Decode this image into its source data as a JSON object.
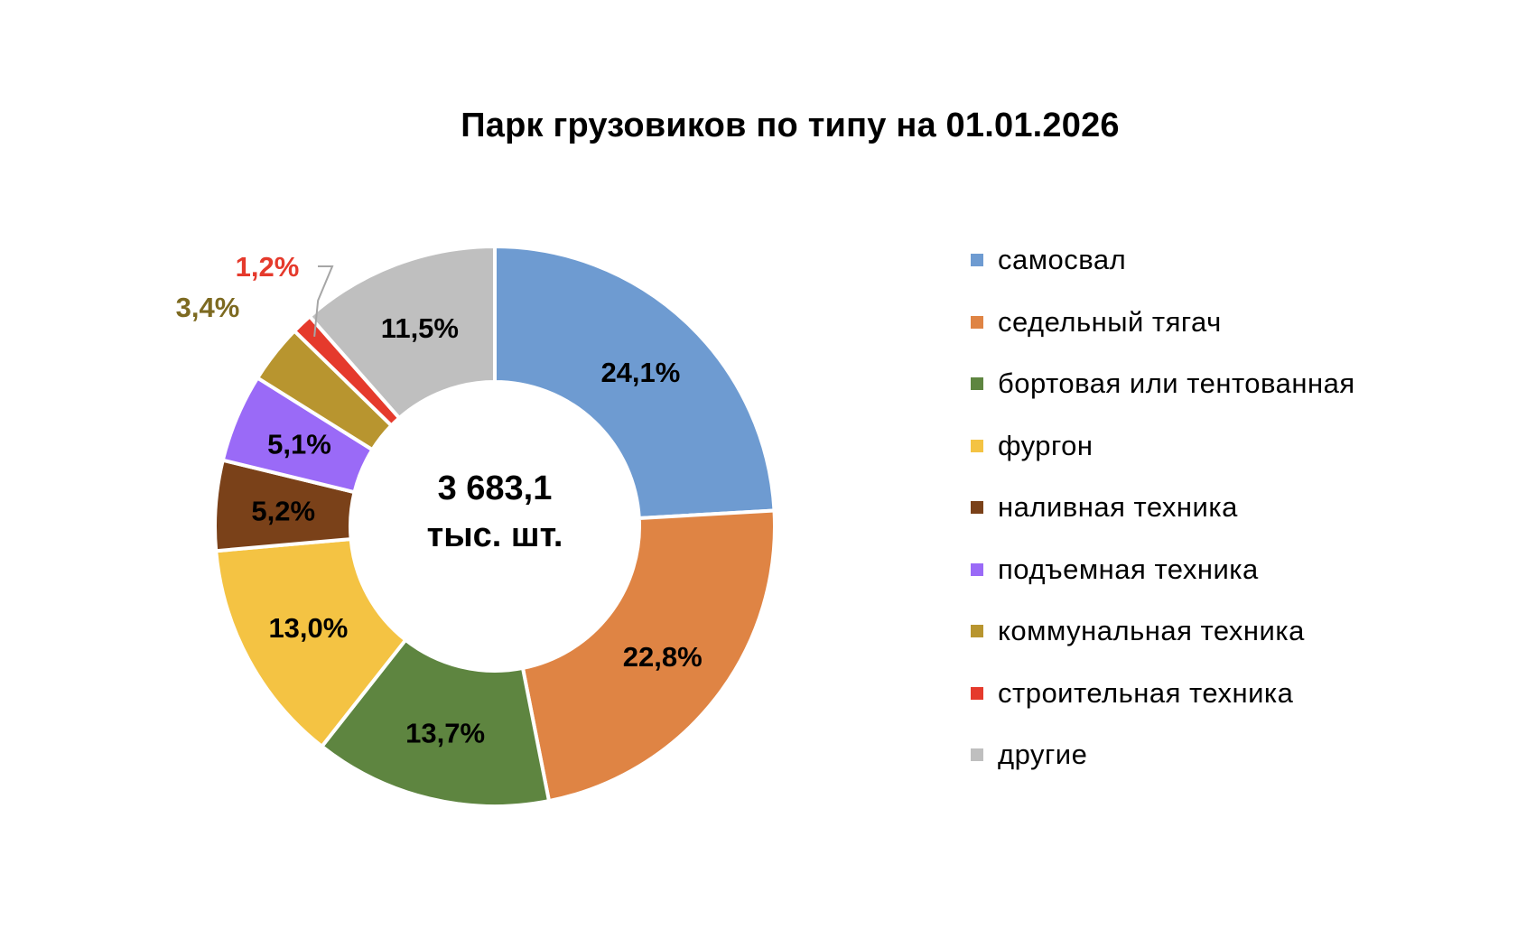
{
  "chart_data": {
    "type": "pie",
    "variant": "donut",
    "title": "Парк грузовиков по типу  на 01.01.2026",
    "center_label": {
      "line1": "3 683,1",
      "line2": "тыс. шт."
    },
    "categories": [
      "самосвал",
      "седельный  тягач",
      "бортовая или тентованная",
      "фургон",
      "наливная техника",
      "подъемная техника",
      "коммунальная техника",
      "строительная техника",
      "другие"
    ],
    "values": [
      24.1,
      22.8,
      13.7,
      13.0,
      5.2,
      5.1,
      3.4,
      1.2,
      11.5
    ],
    "data_labels": [
      "24,1%",
      "22,8%",
      "13,7%",
      "13,0%",
      "5,2%",
      "5,1%",
      "3,4%",
      "1,2%",
      "11,5%"
    ],
    "colors": [
      "#6E9BD1",
      "#DF8444",
      "#5E8540",
      "#F4C343",
      "#7A4119",
      "#9A6AF7",
      "#B8952F",
      "#E53A2C",
      "#BFBFBF"
    ],
    "outer_label_colors": {
      "3,4%": "#7D6A21",
      "1,2%": "#E53A2C"
    },
    "legend_position": "right",
    "start_angle_deg": 0,
    "direction": "clockwise"
  }
}
